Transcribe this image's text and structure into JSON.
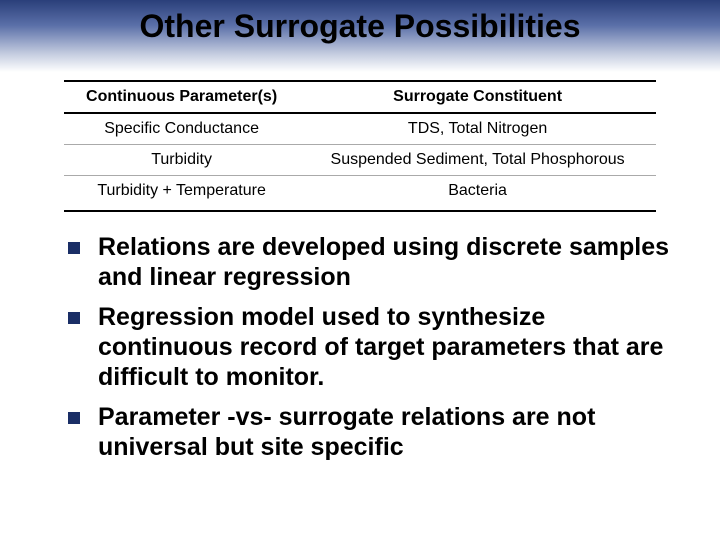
{
  "title": "Other Surrogate Possibilities",
  "table": {
    "headers": [
      "Continuous Parameter(s)",
      "Surrogate Constituent"
    ],
    "rows": [
      [
        "Specific Conductance",
        "TDS, Total Nitrogen"
      ],
      [
        "Turbidity",
        "Suspended Sediment, Total Phosphorous"
      ],
      [
        "Turbidity + Temperature",
        "Bacteria"
      ]
    ]
  },
  "bullets": [
    "Relations are developed using discrete samples and linear regression",
    "Regression model used to synthesize continuous record of target parameters that are difficult to monitor.",
    "Parameter -vs- surrogate relations are not universal but site specific"
  ],
  "colors": {
    "bullet_square": "#1a2e66",
    "header_gradient_top": "#2a3f7a",
    "header_gradient_bottom": "#ffffff"
  }
}
